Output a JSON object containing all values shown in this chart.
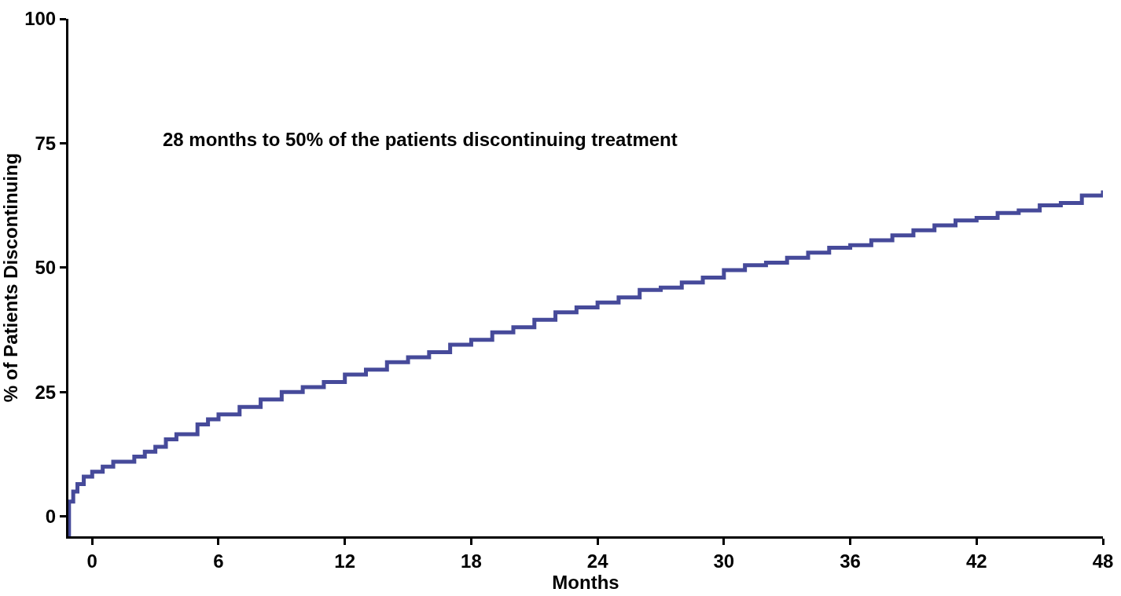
{
  "chart_data": {
    "type": "step",
    "xlabel": "Months",
    "ylabel": "% of Patients Discontinuing",
    "annotations": [
      "28 months to 50% of the patients discontinuing treatment"
    ],
    "x": [
      -1.1,
      -1.1,
      -0.9,
      -0.7,
      -0.4,
      0,
      0.5,
      1,
      2,
      2.5,
      3,
      3.5,
      4,
      5,
      5.5,
      6,
      7,
      8,
      9,
      10,
      11,
      12,
      13,
      14,
      15,
      16,
      17,
      18,
      19,
      20,
      21,
      22,
      23,
      24,
      25,
      26,
      27,
      28,
      29,
      30,
      31,
      32,
      33,
      34,
      35,
      36,
      37,
      38,
      39,
      40,
      41,
      42,
      43,
      44,
      45,
      46,
      47,
      48
    ],
    "series": [
      {
        "color": "#464a9a",
        "values": [
          -4,
          3,
          5,
          6.5,
          8,
          9,
          10,
          11,
          12,
          13,
          14,
          15.5,
          16.5,
          18.5,
          19.5,
          20.5,
          22,
          23.5,
          25,
          26,
          27,
          28.5,
          29.5,
          31,
          32,
          33,
          34.5,
          35.5,
          37,
          38,
          39.5,
          41,
          42,
          43,
          44,
          45.5,
          46,
          47,
          48,
          49.5,
          50.5,
          51,
          52,
          53,
          54,
          54.5,
          55.5,
          56.5,
          57.5,
          58.5,
          59.5,
          60,
          61,
          61.5,
          62.5,
          63,
          64.5,
          65.5
        ]
      }
    ],
    "xlim": [
      -1.13,
      48
    ],
    "ylim": [
      -4,
      100
    ],
    "xticks": [
      0,
      6,
      12,
      18,
      24,
      30,
      36,
      42,
      48
    ],
    "yticks": [
      0,
      25,
      50,
      75,
      100
    ],
    "marker": "none",
    "line_style": "solid"
  }
}
